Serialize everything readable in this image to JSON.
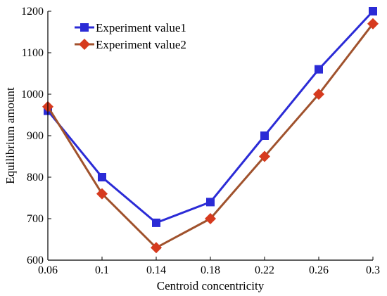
{
  "chart_data": {
    "type": "line",
    "title": "",
    "xlabel": "Centroid concentricity",
    "ylabel": "Equilibrium amount",
    "x": [
      0.06,
      0.1,
      0.14,
      0.18,
      0.22,
      0.26,
      0.3
    ],
    "x_tick_labels": [
      "0.06",
      "0.1",
      "0.14",
      "0.18",
      "0.22",
      "0.26",
      "0.3"
    ],
    "xlim": [
      0.06,
      0.3
    ],
    "ylim": [
      600,
      1200
    ],
    "y_ticks": [
      600,
      700,
      800,
      900,
      1000,
      1100,
      1200
    ],
    "y_tick_labels": [
      "600",
      "700",
      "800",
      "900",
      "1000",
      "1100",
      "1200"
    ],
    "grid": false,
    "legend_position": "top-left",
    "series": [
      {
        "name": "Experiment value1",
        "values": [
          960,
          800,
          690,
          740,
          900,
          1060,
          1200
        ],
        "color": "#2b2bd6",
        "line_color": "#2b2bd6",
        "marker": "square"
      },
      {
        "name": "Experiment value2",
        "values": [
          970,
          760,
          630,
          700,
          850,
          1000,
          1170
        ],
        "color": "#d63a1e",
        "line_color": "#a0522d",
        "marker": "diamond"
      }
    ]
  }
}
